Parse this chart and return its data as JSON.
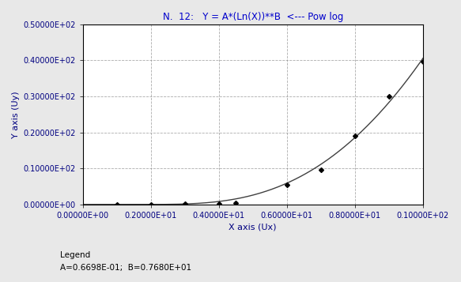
{
  "title": "N.  12:   Y = A*(Ln(X))**B  <--- Pow log",
  "xlabel": "X axis (Ux)",
  "ylabel": "Y axis (Uy)",
  "legend_line1": "Legend",
  "legend_line2": "A=0.6698E-01;  B=0.7680E+01",
  "A": 0.06698,
  "B": 7.68,
  "x_data": [
    1.0,
    2.0,
    3.0,
    4.0,
    4.5,
    6.0,
    7.0,
    8.0,
    9.0,
    10.0
  ],
  "y_data": [
    0.0,
    0.05,
    0.1,
    0.2,
    0.5,
    5.5,
    9.5,
    19.0,
    30.0,
    39.5
  ],
  "xlim": [
    0.0,
    10.0
  ],
  "ylim": [
    0.0,
    50.0
  ],
  "x_ticks": [
    0.0,
    2.0,
    4.0,
    6.0,
    8.0,
    10.0
  ],
  "y_ticks": [
    0.0,
    10.0,
    20.0,
    30.0,
    40.0,
    50.0
  ],
  "bg_color": "#e8e8e8",
  "plot_bg_color": "#ffffff",
  "curve_color": "#404040",
  "dot_color": "#000000",
  "grid_color": "#888888",
  "title_color": "#0000cc",
  "axis_label_color": "#000080",
  "tick_label_color": "#000080",
  "tick_fontsize": 7,
  "label_fontsize": 8,
  "title_fontsize": 8.5
}
